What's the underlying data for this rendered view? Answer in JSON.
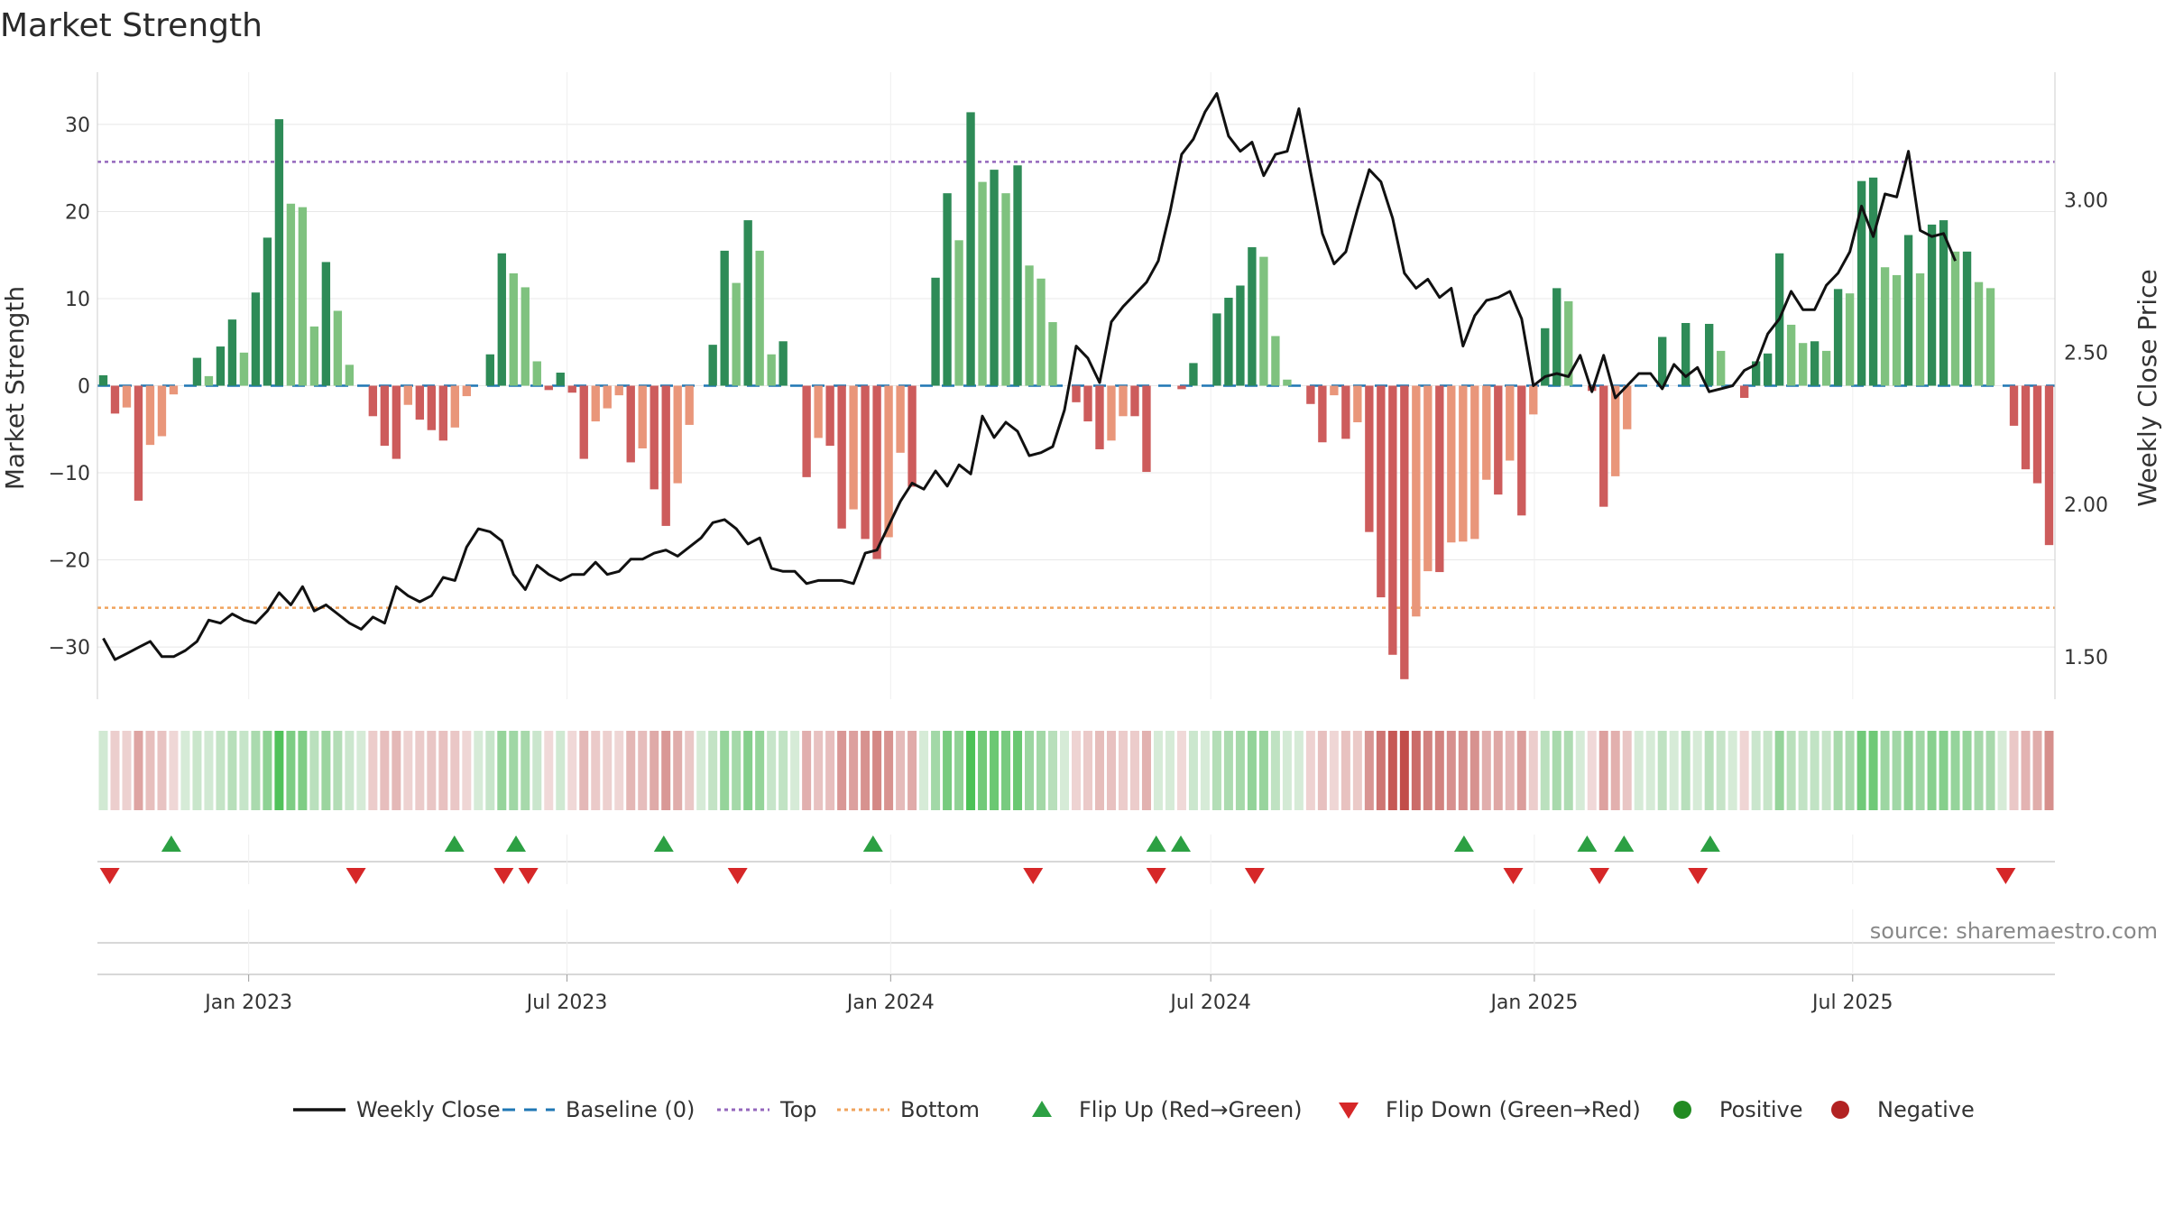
{
  "chart_data": {
    "type": "bar",
    "title": "Market Strength",
    "ylabel_left": "Market Strength",
    "ylabel_right": "Weekly Close Price",
    "ylim_left": [
      -36,
      36
    ],
    "ylim_right": [
      1.36,
      3.42
    ],
    "yticks_left": [
      30,
      20,
      10,
      0,
      -10,
      -20,
      -30
    ],
    "ytick_labels_left": [
      "30",
      "20",
      "10",
      "0",
      "−10",
      "−20",
      "−30"
    ],
    "yticks_right": [
      3.0,
      2.5,
      2.0,
      1.5
    ],
    "ytick_labels_right": [
      "3.00",
      "2.50",
      "2.00",
      "1.50"
    ],
    "x_start": "2022-10-07",
    "x_end": "2025-10-24",
    "x_tick_dates": [
      "2023-01-01",
      "2023-07-01",
      "2024-01-01",
      "2024-07-01",
      "2025-01-01",
      "2025-07-01"
    ],
    "x_tick_labels": [
      "Jan 2023",
      "Jul 2023",
      "Jan 2024",
      "Jul 2024",
      "Jan 2025",
      "Jul 2025"
    ],
    "top_line": 25.7,
    "bottom_line": -25.5,
    "strength": [
      1.2,
      -3.2,
      -2.5,
      -13.2,
      -6.8,
      -5.8,
      -1.0,
      0,
      3.2,
      1.1,
      4.5,
      7.6,
      3.8,
      10.7,
      17.0,
      30.6,
      20.9,
      20.5,
      6.8,
      14.2,
      8.6,
      2.4,
      0,
      -3.5,
      -6.9,
      -8.4,
      -2.2,
      -3.9,
      -5.1,
      -6.3,
      -4.8,
      -1.2,
      0,
      3.6,
      15.2,
      12.9,
      11.3,
      2.8,
      -0.5,
      1.5,
      -0.8,
      -8.4,
      -4.1,
      -2.6,
      -1.1,
      -8.8,
      -7.2,
      -11.9,
      -16.1,
      -11.2,
      -4.5,
      0,
      4.7,
      15.5,
      11.8,
      19.0,
      15.5,
      3.6,
      5.1,
      0,
      -10.5,
      -6.0,
      -6.9,
      -16.4,
      -14.2,
      -17.6,
      -19.9,
      -17.4,
      -7.7,
      -11.6,
      0,
      12.4,
      22.1,
      16.7,
      31.4,
      23.4,
      24.8,
      22.1,
      25.3,
      13.8,
      12.3,
      7.3,
      0,
      -1.9,
      -4.1,
      -7.3,
      -6.3,
      -3.5,
      -3.5,
      -9.9,
      0,
      0,
      -0.4,
      2.6,
      0,
      8.3,
      10.1,
      11.5,
      15.9,
      14.8,
      5.7,
      0.7,
      0,
      -2.1,
      -6.5,
      -1.1,
      -6.1,
      -4.2,
      -16.8,
      -24.3,
      -30.9,
      -33.7,
      -26.5,
      -21.3,
      -21.4,
      -18.0,
      -17.9,
      -17.6,
      -10.8,
      -12.5,
      -8.6,
      -14.9,
      -3.3,
      6.6,
      11.2,
      9.7,
      0,
      -0.6,
      -13.9,
      -10.4,
      -5.0,
      0,
      0,
      5.6,
      0,
      7.2,
      0,
      7.1,
      4.0,
      0,
      -1.4,
      2.8,
      3.7,
      15.2,
      7.0,
      4.9,
      5.1,
      4.0,
      11.1,
      10.6,
      23.5,
      23.9,
      13.6,
      12.7,
      17.3,
      12.9,
      18.5,
      19.0,
      15.4,
      15.4,
      11.9,
      11.2,
      0,
      -4.6,
      -9.6,
      -11.2,
      -18.3
    ],
    "weekly_close": [
      1.56,
      1.49,
      1.51,
      1.53,
      1.55,
      1.5,
      1.5,
      1.52,
      1.55,
      1.62,
      1.61,
      1.64,
      1.62,
      1.61,
      1.65,
      1.71,
      1.67,
      1.73,
      1.65,
      1.67,
      1.64,
      1.61,
      1.59,
      1.63,
      1.61,
      1.73,
      1.7,
      1.68,
      1.7,
      1.76,
      1.75,
      1.86,
      1.92,
      1.91,
      1.88,
      1.77,
      1.72,
      1.8,
      1.77,
      1.75,
      1.77,
      1.77,
      1.81,
      1.77,
      1.78,
      1.82,
      1.82,
      1.84,
      1.85,
      1.83,
      1.86,
      1.89,
      1.94,
      1.95,
      1.92,
      1.87,
      1.89,
      1.79,
      1.78,
      1.78,
      1.74,
      1.75,
      1.75,
      1.75,
      1.74,
      1.84,
      1.85,
      1.93,
      2.01,
      2.07,
      2.05,
      2.11,
      2.06,
      2.13,
      2.1,
      2.29,
      2.22,
      2.27,
      2.24,
      2.16,
      2.17,
      2.19,
      2.31,
      2.52,
      2.48,
      2.4,
      2.6,
      2.65,
      2.69,
      2.73,
      2.8,
      2.96,
      3.15,
      3.2,
      3.29,
      3.35,
      3.21,
      3.16,
      3.19,
      3.08,
      3.15,
      3.16,
      3.3,
      3.09,
      2.89,
      2.79,
      2.83,
      2.97,
      3.1,
      3.06,
      2.94,
      2.76,
      2.71,
      2.74,
      2.68,
      2.71,
      2.52,
      2.62,
      2.67,
      2.68,
      2.7,
      2.61,
      2.39,
      2.42,
      2.43,
      2.42,
      2.49,
      2.37,
      2.49,
      2.35,
      2.39,
      2.43,
      2.43,
      2.38,
      2.46,
      2.42,
      2.45,
      2.37,
      2.38,
      2.39,
      2.44,
      2.46,
      2.56,
      2.61,
      2.7,
      2.64,
      2.64,
      2.72,
      2.76,
      2.83,
      2.98,
      2.88,
      3.02,
      3.01,
      3.16,
      2.9,
      2.88,
      2.89,
      2.8
    ],
    "flip_up_dates": [
      "2022-11-18",
      "2023-04-28",
      "2023-06-02",
      "2023-08-25",
      "2023-12-22",
      "2024-05-31",
      "2024-06-14",
      "2024-11-22",
      "2025-01-31",
      "2025-02-21",
      "2025-04-11"
    ],
    "flip_down_dates": [
      "2022-10-14",
      "2023-03-03",
      "2023-05-26",
      "2023-06-09",
      "2023-10-06",
      "2024-03-22",
      "2024-05-31",
      "2024-07-26",
      "2024-12-20",
      "2025-02-07",
      "2025-04-04",
      "2025-09-26"
    ],
    "legend": [
      {
        "label": "Weekly Close",
        "kind": "solid-line",
        "color": "#111111"
      },
      {
        "label": "Baseline (0)",
        "kind": "dash-line",
        "color": "#1f77b4"
      },
      {
        "label": "Top",
        "kind": "dot-line",
        "color": "#9467bd"
      },
      {
        "label": "Bottom",
        "kind": "dot-line",
        "color": "#f0a35c"
      },
      {
        "label": "Flip Up (Red→Green)",
        "kind": "tri-up",
        "color": "#2ca043"
      },
      {
        "label": "Flip Down (Green→Red)",
        "kind": "tri-down",
        "color": "#d62728"
      },
      {
        "label": "Positive",
        "kind": "dot",
        "color": "#228b22"
      },
      {
        "label": "Negative",
        "kind": "dot",
        "color": "#b22222"
      }
    ],
    "legend_position": "bottom-center"
  },
  "source_text": "source: sharemaestro.com",
  "colors": {
    "pos_dark": "#2e8b57",
    "pos_light": "#7fc27f",
    "neg_dark": "#cd5c5c",
    "neg_light": "#e9967a",
    "close": "#111111",
    "baseline": "#1f77b4",
    "top": "#9467bd",
    "bottom": "#f0a35c",
    "flip_up": "#2ca043",
    "flip_down": "#d62728"
  }
}
